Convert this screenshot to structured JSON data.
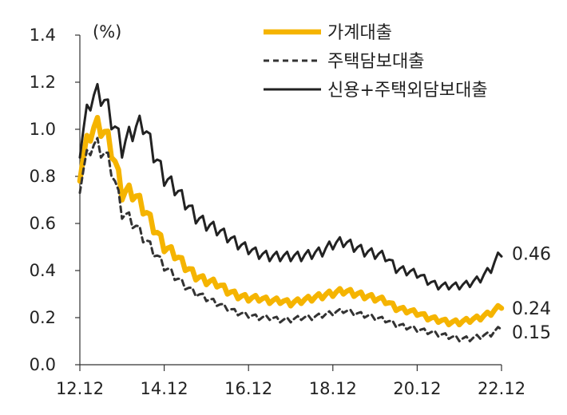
{
  "chart_data": {
    "type": "line",
    "unit": "(%)",
    "ylim": [
      0,
      1.4
    ],
    "yticks": [
      "0.0",
      "0.2",
      "0.4",
      "0.6",
      "0.8",
      "1.0",
      "1.2",
      "1.4"
    ],
    "xlim": [
      "2012-12",
      "2022-12"
    ],
    "xticks": [
      {
        "date": "2012-12",
        "label": "12.12"
      },
      {
        "date": "2014-12",
        "label": "14.12"
      },
      {
        "date": "2016-12",
        "label": "16.12"
      },
      {
        "date": "2018-12",
        "label": "18.12"
      },
      {
        "date": "2020-12",
        "label": "20.12"
      },
      {
        "date": "2022-12",
        "label": "22.12"
      }
    ],
    "grid": false,
    "legend_position": "top-right",
    "series": [
      {
        "name": "가계대출",
        "color": "#F5B400",
        "style": "solid-thick",
        "end_label": "0.24",
        "points": [
          [
            "2012-12",
            0.78
          ],
          [
            "2013-03",
            0.95
          ],
          [
            "2013-06",
            0.97
          ],
          [
            "2013-09",
            0.88
          ],
          [
            "2013-12",
            0.7
          ],
          [
            "2014-03",
            0.7
          ],
          [
            "2014-06",
            0.64
          ],
          [
            "2014-09",
            0.56
          ],
          [
            "2014-12",
            0.48
          ],
          [
            "2015-03",
            0.45
          ],
          [
            "2015-06",
            0.4
          ],
          [
            "2015-09",
            0.36
          ],
          [
            "2015-12",
            0.34
          ],
          [
            "2016-03",
            0.33
          ],
          [
            "2016-06",
            0.3
          ],
          [
            "2016-09",
            0.28
          ],
          [
            "2016-12",
            0.27
          ],
          [
            "2017-03",
            0.27
          ],
          [
            "2017-06",
            0.26
          ],
          [
            "2017-09",
            0.26
          ],
          [
            "2017-12",
            0.25
          ],
          [
            "2018-03",
            0.26
          ],
          [
            "2018-06",
            0.27
          ],
          [
            "2018-09",
            0.28
          ],
          [
            "2018-12",
            0.29
          ],
          [
            "2019-03",
            0.3
          ],
          [
            "2019-06",
            0.29
          ],
          [
            "2019-09",
            0.28
          ],
          [
            "2019-12",
            0.27
          ],
          [
            "2020-03",
            0.26
          ],
          [
            "2020-06",
            0.23
          ],
          [
            "2020-09",
            0.22
          ],
          [
            "2020-12",
            0.21
          ],
          [
            "2021-03",
            0.19
          ],
          [
            "2021-06",
            0.18
          ],
          [
            "2021-09",
            0.17
          ],
          [
            "2021-12",
            0.17
          ],
          [
            "2022-03",
            0.18
          ],
          [
            "2022-06",
            0.19
          ],
          [
            "2022-09",
            0.21
          ],
          [
            "2022-12",
            0.24
          ]
        ]
      },
      {
        "name": "주택담보대출",
        "color": "#333333",
        "style": "dashed",
        "end_label": "0.15",
        "points": [
          [
            "2012-12",
            0.73
          ],
          [
            "2013-03",
            0.89
          ],
          [
            "2013-06",
            0.88
          ],
          [
            "2013-09",
            0.8
          ],
          [
            "2013-12",
            0.62
          ],
          [
            "2014-03",
            0.58
          ],
          [
            "2014-06",
            0.52
          ],
          [
            "2014-09",
            0.46
          ],
          [
            "2014-12",
            0.4
          ],
          [
            "2015-03",
            0.36
          ],
          [
            "2015-06",
            0.32
          ],
          [
            "2015-09",
            0.29
          ],
          [
            "2015-12",
            0.27
          ],
          [
            "2016-03",
            0.25
          ],
          [
            "2016-06",
            0.23
          ],
          [
            "2016-09",
            0.21
          ],
          [
            "2016-12",
            0.2
          ],
          [
            "2017-03",
            0.19
          ],
          [
            "2017-06",
            0.19
          ],
          [
            "2017-09",
            0.18
          ],
          [
            "2017-12",
            0.18
          ],
          [
            "2018-03",
            0.19
          ],
          [
            "2018-06",
            0.19
          ],
          [
            "2018-09",
            0.2
          ],
          [
            "2018-12",
            0.21
          ],
          [
            "2019-03",
            0.22
          ],
          [
            "2019-06",
            0.21
          ],
          [
            "2019-09",
            0.2
          ],
          [
            "2019-12",
            0.19
          ],
          [
            "2020-03",
            0.18
          ],
          [
            "2020-06",
            0.16
          ],
          [
            "2020-09",
            0.15
          ],
          [
            "2020-12",
            0.14
          ],
          [
            "2021-03",
            0.13
          ],
          [
            "2021-06",
            0.12
          ],
          [
            "2021-09",
            0.11
          ],
          [
            "2021-12",
            0.1
          ],
          [
            "2022-03",
            0.1
          ],
          [
            "2022-06",
            0.11
          ],
          [
            "2022-09",
            0.12
          ],
          [
            "2022-12",
            0.15
          ]
        ]
      },
      {
        "name": "신용+주택외담보대출",
        "color": "#222222",
        "style": "solid",
        "end_label": "0.46",
        "points": [
          [
            "2012-12",
            0.88
          ],
          [
            "2013-03",
            1.08
          ],
          [
            "2013-06",
            1.1
          ],
          [
            "2013-09",
            1.0
          ],
          [
            "2013-12",
            0.88
          ],
          [
            "2014-03",
            0.95
          ],
          [
            "2014-06",
            0.98
          ],
          [
            "2014-09",
            0.86
          ],
          [
            "2014-12",
            0.76
          ],
          [
            "2015-03",
            0.72
          ],
          [
            "2015-06",
            0.66
          ],
          [
            "2015-09",
            0.6
          ],
          [
            "2015-12",
            0.57
          ],
          [
            "2016-03",
            0.55
          ],
          [
            "2016-06",
            0.52
          ],
          [
            "2016-09",
            0.49
          ],
          [
            "2016-12",
            0.47
          ],
          [
            "2017-03",
            0.45
          ],
          [
            "2017-06",
            0.44
          ],
          [
            "2017-09",
            0.44
          ],
          [
            "2017-12",
            0.44
          ],
          [
            "2018-03",
            0.44
          ],
          [
            "2018-06",
            0.45
          ],
          [
            "2018-09",
            0.46
          ],
          [
            "2018-12",
            0.49
          ],
          [
            "2019-03",
            0.5
          ],
          [
            "2019-06",
            0.48
          ],
          [
            "2019-09",
            0.46
          ],
          [
            "2019-12",
            0.45
          ],
          [
            "2020-03",
            0.44
          ],
          [
            "2020-06",
            0.39
          ],
          [
            "2020-09",
            0.38
          ],
          [
            "2020-12",
            0.37
          ],
          [
            "2021-03",
            0.34
          ],
          [
            "2021-06",
            0.32
          ],
          [
            "2021-09",
            0.32
          ],
          [
            "2021-12",
            0.32
          ],
          [
            "2022-03",
            0.33
          ],
          [
            "2022-06",
            0.35
          ],
          [
            "2022-09",
            0.39
          ],
          [
            "2022-12",
            0.46
          ]
        ]
      }
    ]
  }
}
